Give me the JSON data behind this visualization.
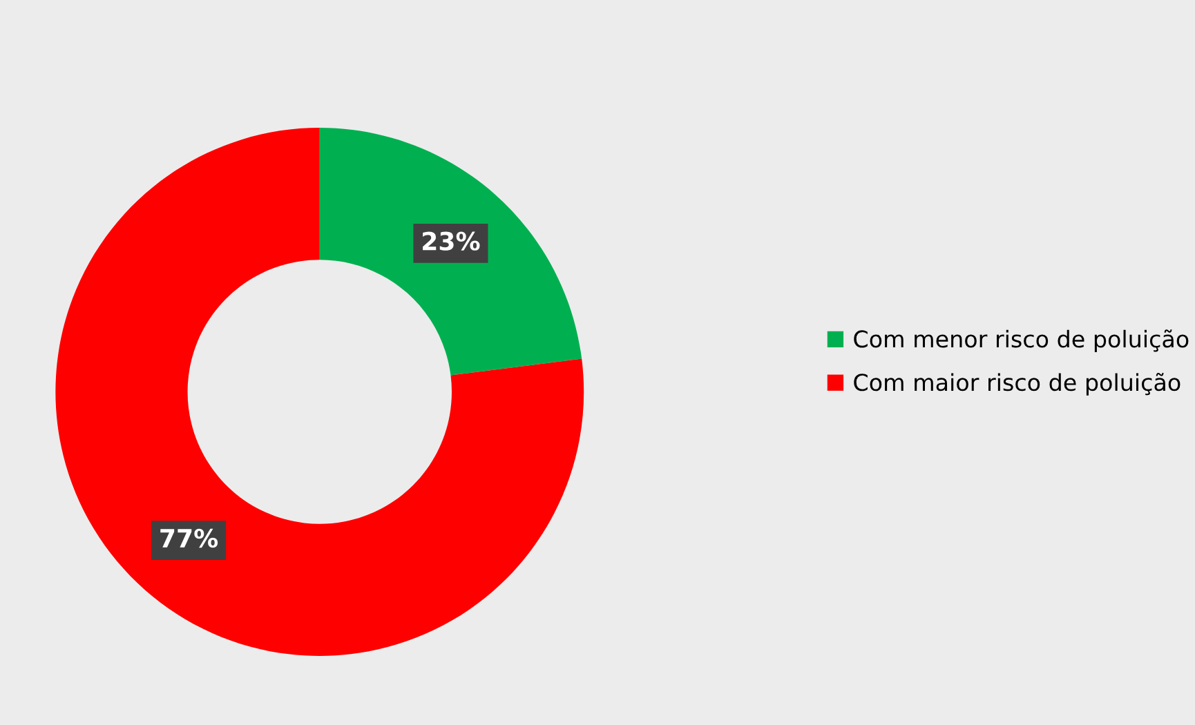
{
  "chart_data": {
    "type": "donut",
    "categories": [
      "Com menor risco de poluição",
      "Com maior risco de poluição"
    ],
    "values": [
      23,
      77
    ],
    "colors": [
      "#00b050",
      "#ff0000"
    ],
    "value_labels": [
      "23%",
      "77%"
    ],
    "legend": "right"
  }
}
